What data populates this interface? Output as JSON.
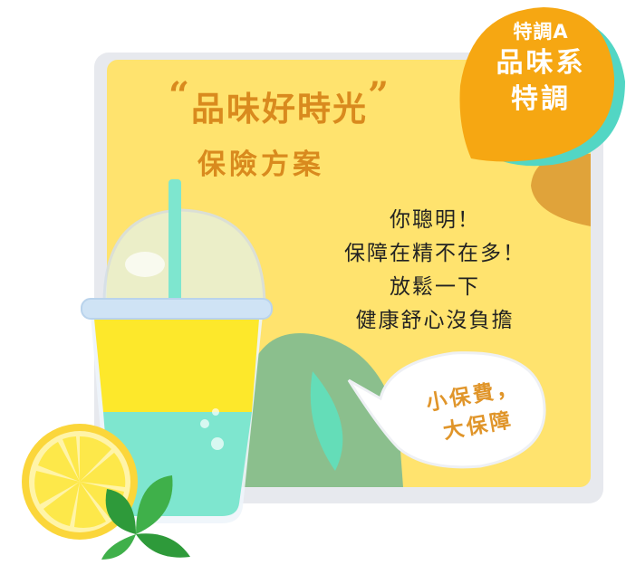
{
  "badge": {
    "line1": "特調A",
    "line2": "品味系",
    "line3": "特調"
  },
  "title": {
    "open_quote": "“",
    "text": "品味好時光",
    "close_quote": "”"
  },
  "subtitle": "保險方案",
  "body": {
    "lines": [
      "你聰明！",
      "保障在精不在多！",
      "放鬆一下",
      "健康舒心沒負擔"
    ]
  },
  "bubble": {
    "lines": [
      "小保費，",
      "大保障"
    ]
  },
  "colors": {
    "card": "#ffe36e",
    "title": "#d98a1e",
    "badge": "#f6a712",
    "badge_shadow": "#52d6c4",
    "leaf_green": "#8bbf8d",
    "drink_yellow": "#fde82b",
    "drink_mint": "#7ee6cf",
    "lemon": "#fde84a"
  }
}
